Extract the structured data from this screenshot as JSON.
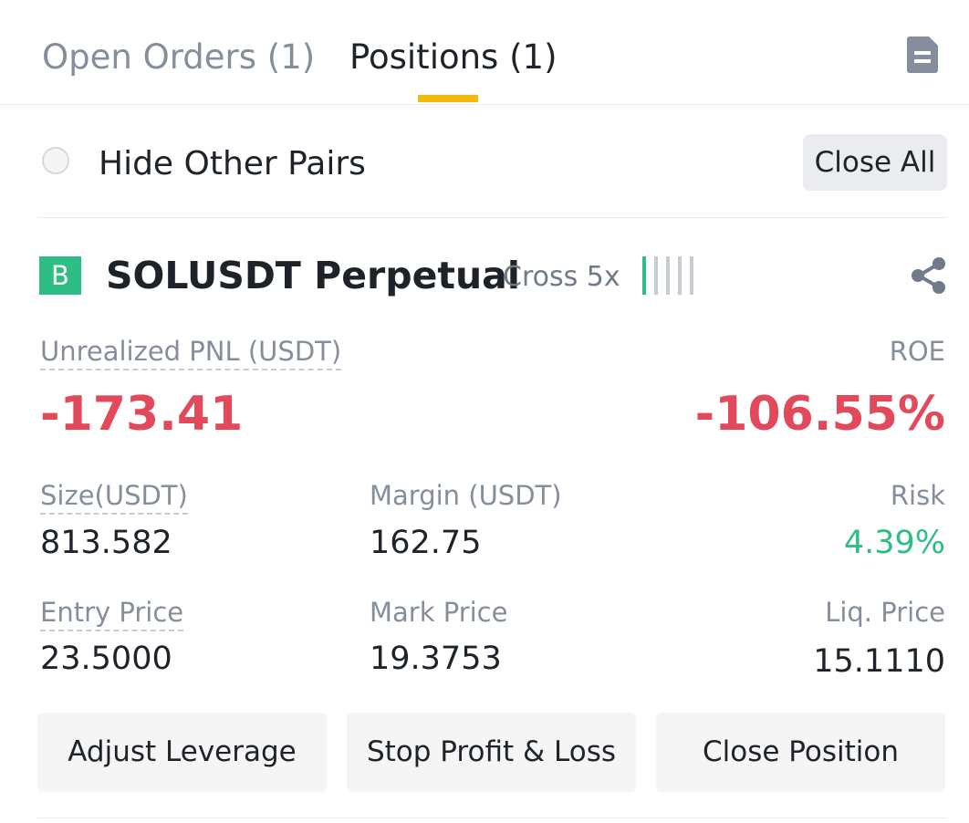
{
  "tabs": {
    "open_orders": "Open Orders (1)",
    "positions": "Positions (1)",
    "active": "positions"
  },
  "icons": {
    "history": "document-icon",
    "share": "share-icon"
  },
  "filter": {
    "hide_other_pairs_label": "Hide Other Pairs",
    "hide_other_pairs_checked": false,
    "close_all_label": "Close All"
  },
  "position": {
    "side_badge": "B",
    "symbol": "SOLUSDT Perpetual",
    "margin_mode": "Cross 5x",
    "adl_level": 1,
    "adl_max": 5,
    "unrealized_pnl_label": "Unrealized PNL (USDT)",
    "unrealized_pnl": "-173.41",
    "roe_label": "ROE",
    "roe": "-106.55%",
    "size_label": "Size(USDT)",
    "size": "813.582",
    "margin_label": "Margin (USDT)",
    "margin": "162.75",
    "risk_label": "Risk",
    "risk": "4.39%",
    "entry_price_label": "Entry Price",
    "entry_price": "23.5000",
    "mark_price_label": "Mark Price",
    "mark_price": "19.3753",
    "liq_price_label": "Liq. Price",
    "liq_price": "15.1110"
  },
  "actions": {
    "adjust_leverage": "Adjust Leverage",
    "stop_profit_loss": "Stop Profit & Loss",
    "close_position": "Close Position"
  },
  "colors": {
    "accent": "#f0b90b",
    "loss": "#e24a5b",
    "profit": "#2ebd85",
    "muted": "#848e9c"
  }
}
